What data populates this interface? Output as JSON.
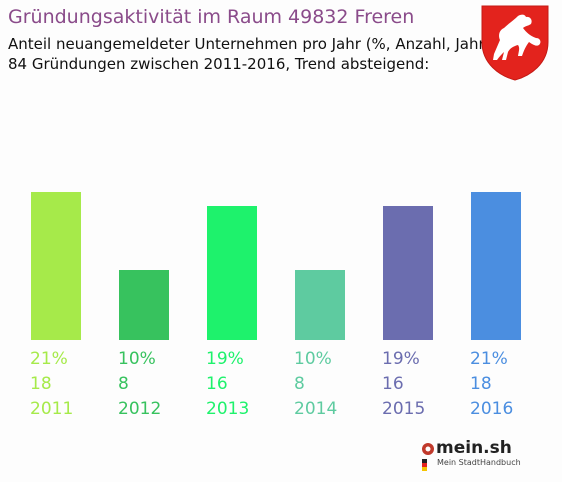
{
  "header": {
    "title": "Gründungsaktivität im Raum 49832 Freren",
    "subtitle1": "Anteil neuangemeldeter Unternehmen pro Jahr (%, Anzahl, Jahr)",
    "subtitle2": "84 Gründungen zwischen 2011-2016, Trend absteigend:"
  },
  "crest": {
    "icon": "niedersachsen-horse-crest-icon",
    "color": "#e3231d"
  },
  "brand": {
    "name": "mein.sh",
    "sub": "Mein StadtHandbuch",
    "accent": "#c0392b"
  },
  "chart_data": {
    "type": "bar",
    "categories": [
      "2011",
      "2012",
      "2013",
      "2014",
      "2015",
      "2016"
    ],
    "values_pct": [
      21,
      10,
      19,
      10,
      19,
      21
    ],
    "pct_labels": [
      "21%",
      "10%",
      "19%",
      "10%",
      "19%",
      "21%"
    ],
    "counts": [
      18,
      8,
      16,
      8,
      16,
      18
    ],
    "count_labels": [
      "18",
      "8",
      "16",
      "8",
      "16",
      "18"
    ],
    "colors": [
      "#a6ea4a",
      "#37c25e",
      "#1ef26c",
      "#5ecba0",
      "#6b6daf",
      "#4b8ee0"
    ],
    "ylim": [
      0,
      21
    ],
    "grid": false,
    "legend": "none"
  }
}
